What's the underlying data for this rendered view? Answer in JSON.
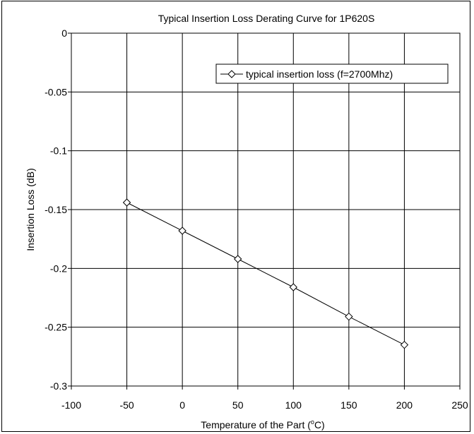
{
  "chart_data": {
    "type": "line",
    "title": "Typical Insertion Loss Derating Curve for 1P620S",
    "xlabel_main": "Temperature of the Part (",
    "xlabel_sup": "o",
    "xlabel_unit": "C)",
    "ylabel": "Insertion Loss (dB)",
    "xlim": [
      -100,
      250
    ],
    "ylim": [
      -0.3,
      0
    ],
    "x_ticks": [
      "-100",
      "-50",
      "0",
      "50",
      "100",
      "150",
      "200",
      "250"
    ],
    "y_ticks": [
      "0",
      "-0.05",
      "-0.1",
      "-0.15",
      "-0.2",
      "-0.25",
      "-0.3"
    ],
    "grid": true,
    "legend_position": "top-right",
    "series": [
      {
        "name": "typical insertion loss (f=2700Mhz)",
        "marker": "diamond",
        "color": "#000000",
        "x": [
          -50,
          0,
          50,
          100,
          150,
          200
        ],
        "y": [
          -0.144,
          -0.168,
          -0.192,
          -0.216,
          -0.241,
          -0.265
        ]
      }
    ]
  }
}
